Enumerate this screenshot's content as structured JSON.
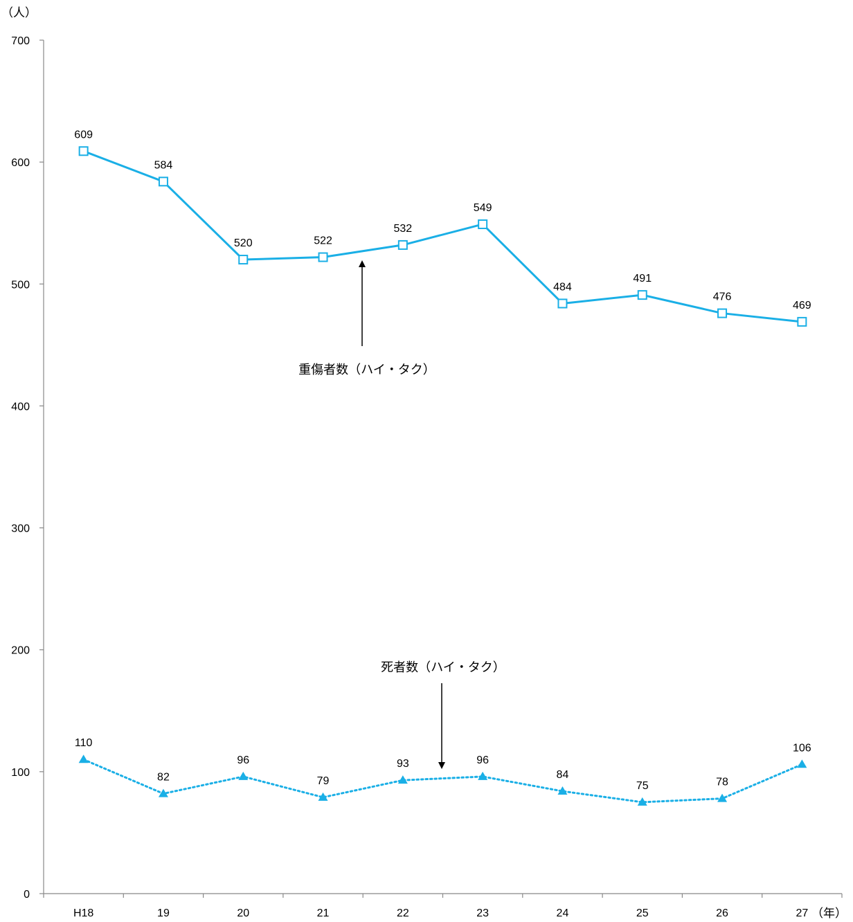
{
  "chart_data": {
    "type": "line",
    "y_unit": "（人）",
    "x_unit": "（年）",
    "categories": [
      "H18",
      "19",
      "20",
      "21",
      "22",
      "23",
      "24",
      "25",
      "26",
      "27"
    ],
    "ylim": [
      0,
      700
    ],
    "yticks": [
      "0",
      "100",
      "200",
      "300",
      "400",
      "500",
      "600",
      "700"
    ],
    "grid": false,
    "legend": "none",
    "series": [
      {
        "name": "重傷者数（ハイ・タク）",
        "values": [
          609,
          584,
          520,
          522,
          532,
          549,
          484,
          491,
          476,
          469
        ],
        "color": "#1AAFE6",
        "line_style": "solid",
        "marker": "hollow-square"
      },
      {
        "name": "死者数（ハイ・タク）",
        "values": [
          110,
          82,
          96,
          79,
          93,
          96,
          84,
          75,
          78,
          106
        ],
        "color": "#1AAFE6",
        "line_style": "dotted",
        "marker": "filled-triangle"
      }
    ]
  }
}
